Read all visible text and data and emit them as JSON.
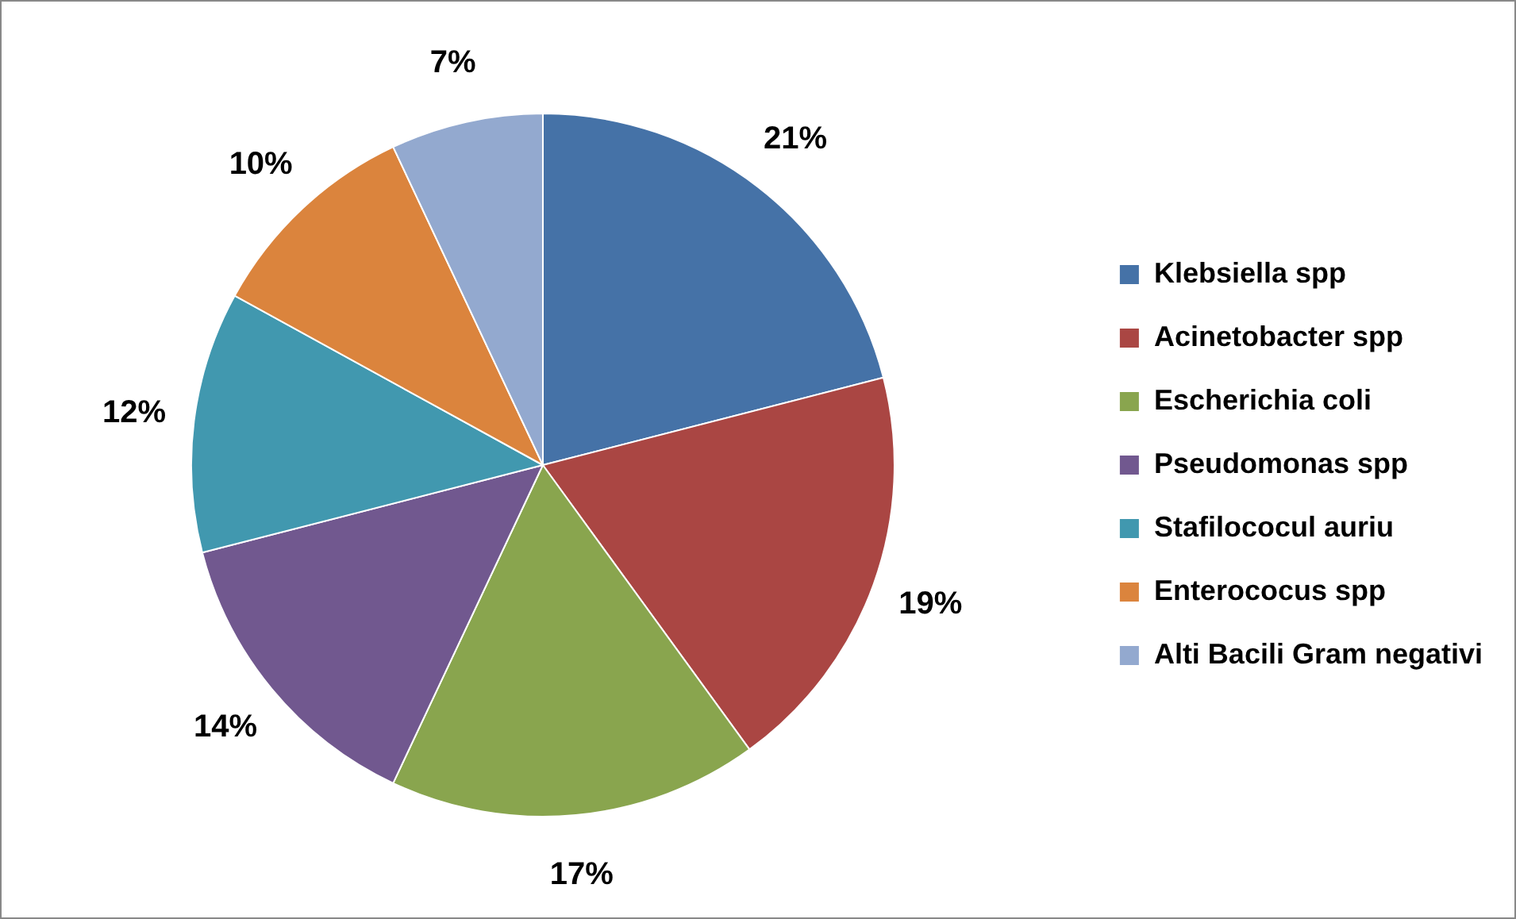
{
  "chart_data": {
    "type": "pie",
    "categories": [
      "Klebsiella spp",
      "Acinetobacter spp",
      "Escherichia coli",
      "Pseudomonas spp",
      "Stafilococul auriu",
      "Enterococus spp",
      "Alti Bacili Gram negativi"
    ],
    "values": [
      21,
      19,
      17,
      14,
      12,
      10,
      7
    ],
    "colors": [
      "#4572a7",
      "#aa4643",
      "#89a54e",
      "#71588f",
      "#4198af",
      "#db843d",
      "#93a9cf"
    ],
    "value_labels": [
      "21%",
      "19%",
      "17%",
      "14%",
      "12%",
      "10%",
      "7%"
    ],
    "legend": "right"
  }
}
